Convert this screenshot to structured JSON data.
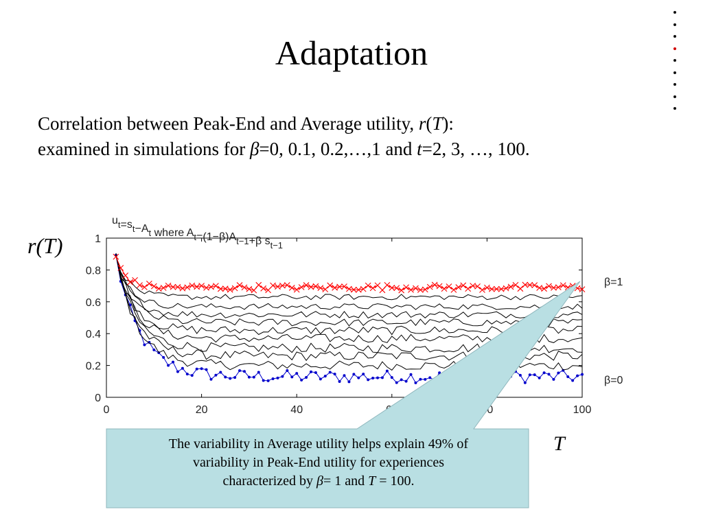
{
  "slide": {
    "title": "Adaptation",
    "line1_pre": "Correlation between Peak-End and Average utility, ",
    "line1_r": "r",
    "line1_open": "(",
    "line1_T": "T",
    "line1_close": "):",
    "line2_pre": "examined in simulations for ",
    "line2_beta": "β",
    "line2_mid": "=0, 0.1, 0.2,…,1 and ",
    "line2_t": "t",
    "line2_post": "=2, 3, …, 100.",
    "y_axis_label": "r(T)",
    "x_axis_label": "T",
    "nav_dots": 9,
    "active_dot": 3
  },
  "callout": {
    "line1": "The variability in Average utility helps explain 49% of",
    "line2": "variability in Peak-End utility for experiences",
    "line3_pre": "characterized by ",
    "line3_beta": "β",
    "line3_mid": "= 1 and ",
    "line3_T": "T",
    "line3_post": " = 100.",
    "fill": "#b9dfe3",
    "border": "#8fb7bd"
  },
  "chart_data": {
    "type": "line",
    "title": "u_t=s_t−A_t where A_t=(1−β)A_{t−1}+β s_{t−1}",
    "title_parts": {
      "a": "u",
      "a_sub": "t",
      "b": "=s",
      "b_sub": "t",
      "c": "−A",
      "c_sub": "t",
      "d": " where A",
      "d_sub": "t",
      "e": "=(1−β)A",
      "e_sub": "t−1",
      "f": "+β s",
      "f_sub": "t−1"
    },
    "xlabel": "T",
    "ylabel": "r(T)",
    "xlim": [
      0,
      100
    ],
    "ylim": [
      0,
      1
    ],
    "x_ticks": [
      0,
      20,
      40,
      60,
      80,
      100
    ],
    "y_ticks": [
      0,
      0.2,
      0.4,
      0.6,
      0.8,
      1
    ],
    "x_tick_labels": [
      "0",
      "20",
      "40",
      "60",
      "80",
      "100"
    ],
    "y_tick_labels": [
      "0",
      "0.2",
      "0.4",
      "0.6",
      "0.8",
      "1"
    ],
    "x_range": [
      2,
      100
    ],
    "series_labels": [
      "β=1",
      "β=0"
    ],
    "colors": {
      "beta1": "#ff0000",
      "beta0": "#0000cc",
      "middle": "#000000"
    },
    "series": [
      {
        "name": "β=0",
        "marker": "dot",
        "start": 0.88,
        "plateau": 0.13,
        "decay": 5.0,
        "noise": 0.018
      },
      {
        "beta": 0.1,
        "start": 0.88,
        "plateau": 0.2,
        "decay": 4.5,
        "noise": 0.02
      },
      {
        "beta": 0.2,
        "start": 0.88,
        "plateau": 0.26,
        "decay": 4.2,
        "noise": 0.02
      },
      {
        "beta": 0.3,
        "start": 0.88,
        "plateau": 0.31,
        "decay": 4.0,
        "noise": 0.02
      },
      {
        "beta": 0.4,
        "start": 0.88,
        "plateau": 0.37,
        "decay": 3.8,
        "noise": 0.018
      },
      {
        "beta": 0.5,
        "start": 0.88,
        "plateau": 0.42,
        "decay": 3.6,
        "noise": 0.018
      },
      {
        "beta": 0.6,
        "start": 0.88,
        "plateau": 0.47,
        "decay": 3.4,
        "noise": 0.016
      },
      {
        "beta": 0.7,
        "start": 0.88,
        "plateau": 0.52,
        "decay": 3.2,
        "noise": 0.015
      },
      {
        "beta": 0.8,
        "start": 0.88,
        "plateau": 0.57,
        "decay": 3.0,
        "noise": 0.013
      },
      {
        "beta": 0.9,
        "start": 0.88,
        "plateau": 0.63,
        "decay": 2.8,
        "noise": 0.012
      },
      {
        "name": "β=1",
        "marker": "x",
        "start": 0.88,
        "plateau": 0.69,
        "decay": 2.2,
        "noise": 0.012
      }
    ]
  }
}
